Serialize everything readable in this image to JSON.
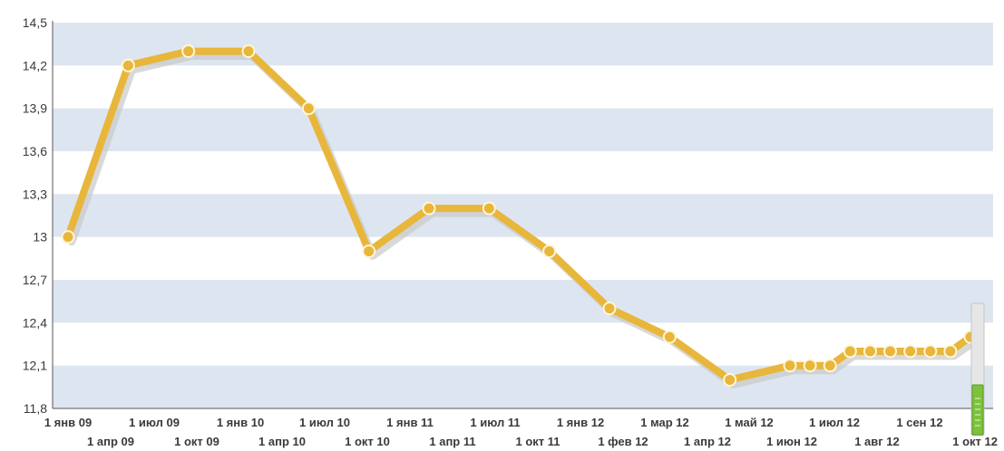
{
  "chart_data": {
    "type": "line",
    "title": "",
    "xlabel": "",
    "ylabel": "",
    "ylim": [
      11.8,
      14.5
    ],
    "y_ticks": [
      "11,8",
      "12,1",
      "12,4",
      "12,7",
      "13",
      "13,3",
      "13,6",
      "13,9",
      "14,2",
      "14,5"
    ],
    "x_ticks_row1": [
      "1 янв 09",
      "1 июл 09",
      "1 янв 10",
      "1 июл 10",
      "1 янв 11",
      "1 июл 11",
      "1 янв 12",
      "1 мар 12",
      "1 май 12",
      "1 июл 12",
      "1 сен 12"
    ],
    "x_ticks_row2": [
      "1 апр 09",
      "1 окт 09",
      "1 апр 10",
      "1 окт 10",
      "1 апр 11",
      "1 окт 11",
      "1 фев 12",
      "1 апр 12",
      "1 июн 12",
      "1 авг 12",
      "1 окт 12"
    ],
    "series": [
      {
        "color": "#e8b63a",
        "points": [
          {
            "x": "2009-01-01",
            "y": 13.0
          },
          {
            "x": "2009-04-01",
            "y": 14.2
          },
          {
            "x": "2009-07-01",
            "y": 14.3
          },
          {
            "x": "2009-10-01",
            "y": 14.3
          },
          {
            "x": "2010-01-01",
            "y": 13.9
          },
          {
            "x": "2010-04-01",
            "y": 12.9
          },
          {
            "x": "2010-07-01",
            "y": 13.2
          },
          {
            "x": "2010-10-01",
            "y": 13.2
          },
          {
            "x": "2011-01-01",
            "y": 12.9
          },
          {
            "x": "2011-04-01",
            "y": 12.5
          },
          {
            "x": "2011-07-01",
            "y": 12.3
          },
          {
            "x": "2011-10-01",
            "y": 12.0
          },
          {
            "x": "2012-01-01",
            "y": 12.1
          },
          {
            "x": "2012-02-01",
            "y": 12.1
          },
          {
            "x": "2012-03-01",
            "y": 12.1
          },
          {
            "x": "2012-04-01",
            "y": 12.2
          },
          {
            "x": "2012-05-01",
            "y": 12.2
          },
          {
            "x": "2012-06-01",
            "y": 12.2
          },
          {
            "x": "2012-07-01",
            "y": 12.2
          },
          {
            "x": "2012-08-01",
            "y": 12.2
          },
          {
            "x": "2012-09-01",
            "y": 12.2
          },
          {
            "x": "2012-10-01",
            "y": 12.3
          }
        ]
      }
    ],
    "grid": "horizontal alternating bands",
    "band_color": "#dde6f0",
    "axis_color": "#555555"
  }
}
